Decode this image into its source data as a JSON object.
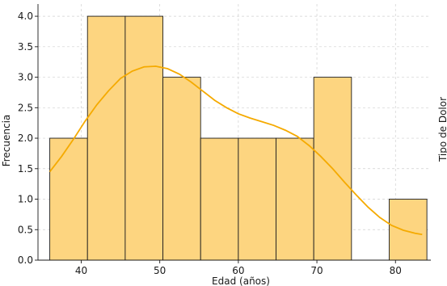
{
  "chart_data": {
    "type": "bar",
    "title": "",
    "xlabel": "Edad (años)",
    "ylabel": "Frecuencia",
    "right_label": "Tipo de Dolor",
    "xlim": [
      34.5,
      84.5
    ],
    "ylim": [
      0,
      4.2
    ],
    "grid": true,
    "x_ticks": [
      40,
      50,
      60,
      70,
      80
    ],
    "y_ticks": [
      0.0,
      0.5,
      1.0,
      1.5,
      2.0,
      2.5,
      3.0,
      3.5,
      4.0
    ],
    "bins": [
      {
        "x0": 36.0,
        "x1": 40.8,
        "count": 2
      },
      {
        "x0": 40.8,
        "x1": 45.6,
        "count": 4
      },
      {
        "x0": 45.6,
        "x1": 50.4,
        "count": 4
      },
      {
        "x0": 50.4,
        "x1": 55.2,
        "count": 3
      },
      {
        "x0": 55.2,
        "x1": 60.0,
        "count": 2
      },
      {
        "x0": 60.0,
        "x1": 64.8,
        "count": 2
      },
      {
        "x0": 64.8,
        "x1": 69.6,
        "count": 2
      },
      {
        "x0": 69.6,
        "x1": 74.4,
        "count": 3
      },
      {
        "x0": 74.4,
        "x1": 79.2,
        "count": 0
      },
      {
        "x0": 79.2,
        "x1": 84.0,
        "count": 1
      }
    ],
    "kde": [
      [
        36.0,
        1.45
      ],
      [
        37.5,
        1.7
      ],
      [
        39.0,
        1.98
      ],
      [
        40.5,
        2.28
      ],
      [
        42.0,
        2.55
      ],
      [
        43.5,
        2.78
      ],
      [
        45.0,
        2.98
      ],
      [
        46.5,
        3.1
      ],
      [
        48.0,
        3.17
      ],
      [
        49.5,
        3.18
      ],
      [
        51.0,
        3.14
      ],
      [
        52.5,
        3.05
      ],
      [
        54.0,
        2.92
      ],
      [
        55.5,
        2.77
      ],
      [
        57.0,
        2.62
      ],
      [
        58.5,
        2.5
      ],
      [
        60.0,
        2.4
      ],
      [
        61.5,
        2.33
      ],
      [
        63.0,
        2.27
      ],
      [
        64.5,
        2.21
      ],
      [
        66.0,
        2.13
      ],
      [
        67.5,
        2.03
      ],
      [
        69.0,
        1.88
      ],
      [
        70.5,
        1.7
      ],
      [
        72.0,
        1.5
      ],
      [
        73.5,
        1.28
      ],
      [
        75.0,
        1.07
      ],
      [
        76.5,
        0.87
      ],
      [
        78.0,
        0.7
      ],
      [
        79.5,
        0.57
      ],
      [
        81.0,
        0.49
      ],
      [
        82.5,
        0.44
      ],
      [
        83.4,
        0.42
      ]
    ],
    "colors": {
      "bar_fill": "#fdd580",
      "bar_edge": "#1e1e1e",
      "kde_line": "#f5aa00",
      "grid": "#d0d0d0"
    }
  }
}
